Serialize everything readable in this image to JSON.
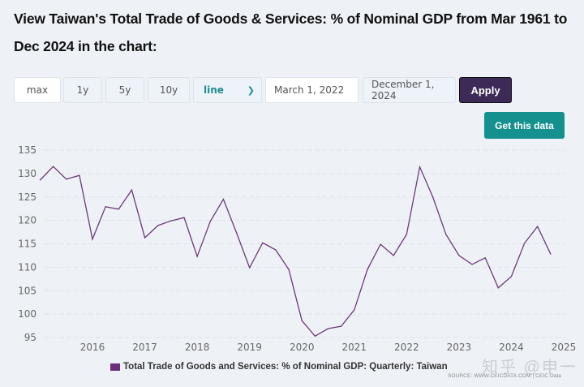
{
  "header": {
    "title": "View Taiwan's Total Trade of Goods & Services: % of Nominal GDP from Mar 1961 to Dec 2024 in the chart:"
  },
  "controls": {
    "range_buttons": [
      "max",
      "1y",
      "5y",
      "10y"
    ],
    "chart_type": {
      "selected": "line",
      "icon": "chevron-down-icon"
    },
    "start_date": "March 1, 2022",
    "end_date": "December 1, 2024",
    "apply_label": "Apply",
    "get_data_label": "Get this data"
  },
  "colors": {
    "series": "#6b3a78",
    "legend_swatch": "#6b2d7e",
    "apply_bg": "#3e2a57",
    "get_data_bg": "#14918f",
    "accent_text": "#1d8f8f"
  },
  "legend": {
    "label": "Total Trade of Goods and Services: % of Nominal GDP: Quarterly: Taiwan"
  },
  "source": "SOURCE: WWW.CEICDATA.COM | CEIC Data",
  "watermark": "知乎 @申一",
  "chart_data": {
    "type": "line",
    "title": "",
    "xlabel": "",
    "ylabel": "",
    "ylim": [
      95,
      135
    ],
    "yticks": [
      95,
      100,
      105,
      110,
      115,
      120,
      125,
      130,
      135
    ],
    "xticks": [
      "2016",
      "2017",
      "2018",
      "2019",
      "2020",
      "2021",
      "2022",
      "2023",
      "2024",
      "2025"
    ],
    "xlim": [
      2015.1,
      2025.0
    ],
    "grid": true,
    "legend_position": "bottom",
    "series": [
      {
        "name": "Total Trade of Goods and Services: % of Nominal GDP: Quarterly: Taiwan",
        "x": [
          "2015-03",
          "2015-06",
          "2015-09",
          "2015-12",
          "2016-03",
          "2016-06",
          "2016-09",
          "2016-12",
          "2017-03",
          "2017-06",
          "2017-09",
          "2017-12",
          "2018-03",
          "2018-06",
          "2018-09",
          "2018-12",
          "2019-03",
          "2019-06",
          "2019-09",
          "2019-12",
          "2020-03",
          "2020-06",
          "2020-09",
          "2020-12",
          "2021-03",
          "2021-06",
          "2021-09",
          "2021-12",
          "2022-03",
          "2022-06",
          "2022-09",
          "2022-12",
          "2023-03",
          "2023-06",
          "2023-09",
          "2023-12",
          "2024-03",
          "2024-06",
          "2024-09",
          "2024-12"
        ],
        "values": [
          128.6,
          131.5,
          128.8,
          129.6,
          116.0,
          122.9,
          122.4,
          126.5,
          116.3,
          118.9,
          119.9,
          120.6,
          112.3,
          119.8,
          124.5,
          117.4,
          109.9,
          115.2,
          113.7,
          109.5,
          98.6,
          95.3,
          96.9,
          97.4,
          100.9,
          109.5,
          114.9,
          112.5,
          117.0,
          131.4,
          125.0,
          117.0,
          112.5,
          110.6,
          112.0,
          105.6,
          108.0,
          115.1,
          118.7,
          112.8
        ]
      }
    ]
  }
}
